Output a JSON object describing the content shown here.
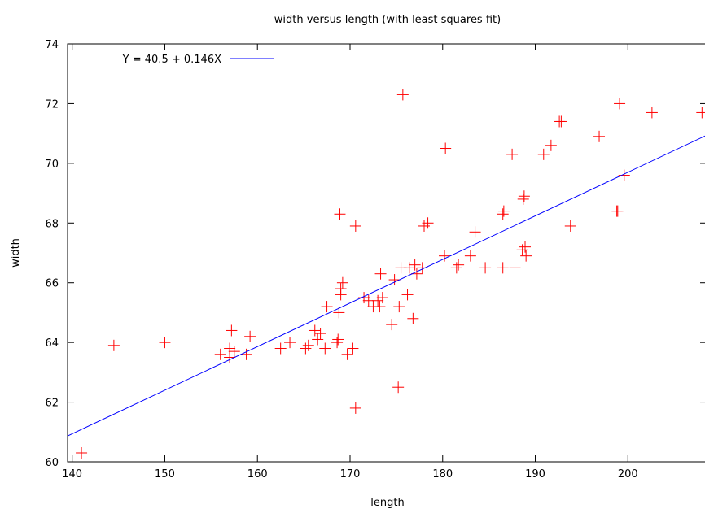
{
  "chart_data": {
    "type": "scatter",
    "title": "width versus length (with least squares fit)",
    "xlabel": "length",
    "ylabel": "width",
    "xlim": [
      139.5,
      208.5
    ],
    "ylim": [
      60,
      74
    ],
    "x_ticks": [
      140,
      150,
      160,
      170,
      180,
      190,
      200
    ],
    "y_ticks": [
      60,
      62,
      64,
      66,
      68,
      70,
      72,
      74
    ],
    "grid": false,
    "legend_position": "top-left",
    "colors": {
      "points": "#ff0000",
      "fit": "#0000ff",
      "axis": "#000000"
    },
    "fit": {
      "name": "Y = 40.5 + 0.146X",
      "intercept": 40.5,
      "slope": 0.146
    },
    "points": [
      [
        141,
        60.3
      ],
      [
        144.5,
        63.9
      ],
      [
        150,
        64
      ],
      [
        156,
        63.6
      ],
      [
        157,
        63.5
      ],
      [
        157,
        63.8
      ],
      [
        157.2,
        64.4
      ],
      [
        157.5,
        63.7
      ],
      [
        158.8,
        63.6
      ],
      [
        159.2,
        64.2
      ],
      [
        162.5,
        63.8
      ],
      [
        163.5,
        64
      ],
      [
        165.2,
        63.8
      ],
      [
        165.5,
        63.9
      ],
      [
        166.2,
        64.4
      ],
      [
        166.5,
        64.1
      ],
      [
        166.8,
        64.3
      ],
      [
        167.3,
        63.8
      ],
      [
        167.5,
        65.2
      ],
      [
        168.6,
        64
      ],
      [
        168.7,
        64.1
      ],
      [
        168.8,
        65
      ],
      [
        169,
        65.6
      ],
      [
        169,
        65.8
      ],
      [
        169.2,
        66
      ],
      [
        168.9,
        68.3
      ],
      [
        169.7,
        63.6
      ],
      [
        170.3,
        63.8
      ],
      [
        170.6,
        61.8
      ],
      [
        170.6,
        67.9
      ],
      [
        171.5,
        65.5
      ],
      [
        172,
        65.4
      ],
      [
        172.5,
        65.2
      ],
      [
        173,
        65.4
      ],
      [
        173.2,
        65.2
      ],
      [
        173.3,
        66.3
      ],
      [
        173.5,
        65.5
      ],
      [
        174.5,
        64.6
      ],
      [
        174.8,
        66.1
      ],
      [
        175.2,
        62.5
      ],
      [
        175.3,
        65.2
      ],
      [
        175.5,
        66.5
      ],
      [
        175.7,
        72.3
      ],
      [
        176.2,
        65.6
      ],
      [
        176.4,
        66.5
      ],
      [
        176.8,
        64.8
      ],
      [
        177,
        66.6
      ],
      [
        177.2,
        66.3
      ],
      [
        177.8,
        66.5
      ],
      [
        178,
        67.9
      ],
      [
        178.4,
        68
      ],
      [
        180.2,
        66.9
      ],
      [
        180.3,
        70.5
      ],
      [
        181.5,
        66.5
      ],
      [
        181.7,
        66.6
      ],
      [
        183,
        66.9
      ],
      [
        183.5,
        67.7
      ],
      [
        184.6,
        66.5
      ],
      [
        186.5,
        68.3
      ],
      [
        186.6,
        68.4
      ],
      [
        186.5,
        66.5
      ],
      [
        187.5,
        70.3
      ],
      [
        187.8,
        66.5
      ],
      [
        188.6,
        67.1
      ],
      [
        188.7,
        68.8
      ],
      [
        188.8,
        68.9
      ],
      [
        188.9,
        67.2
      ],
      [
        189,
        66.9
      ],
      [
        190.9,
        70.3
      ],
      [
        191.7,
        70.6
      ],
      [
        192.6,
        71.4
      ],
      [
        192.8,
        71.4
      ],
      [
        193.8,
        67.9
      ],
      [
        196.9,
        70.9
      ],
      [
        198.8,
        68.4
      ],
      [
        198.9,
        68.4
      ],
      [
        199.1,
        72
      ],
      [
        199.6,
        69.6
      ],
      [
        202.6,
        71.7
      ],
      [
        208,
        71.7
      ]
    ]
  }
}
